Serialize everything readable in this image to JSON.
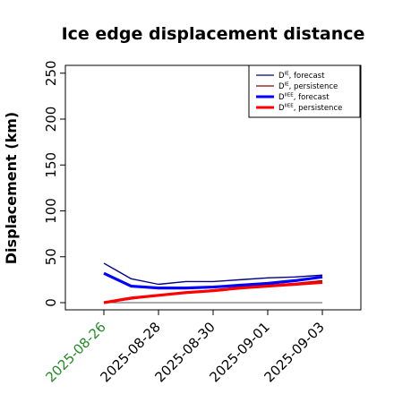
{
  "chart_data": {
    "type": "line",
    "title": "Ice edge displacement distance",
    "ylabel": "Displacement (km)",
    "xlabel": "",
    "ylim": [
      0,
      260
    ],
    "yticks": [
      0,
      50,
      100,
      150,
      200,
      250
    ],
    "x": [
      "2025-08-26",
      "2025-08-27",
      "2025-08-28",
      "2025-08-29",
      "2025-08-30",
      "2025-08-31",
      "2025-09-01",
      "2025-09-02",
      "2025-09-03"
    ],
    "xticks": [
      "2025-08-26",
      "2025-08-28",
      "2025-08-30",
      "2025-09-01",
      "2025-09-03"
    ],
    "highlight_tick": "2025-08-26",
    "highlight_color": "#228b22",
    "zero_line": true,
    "legend_position": "top-right",
    "series": [
      {
        "name": "D forecast",
        "sup": "IE",
        "color": "#00008b",
        "width": "thin",
        "values": [
          43,
          26,
          20,
          23,
          23,
          25,
          27,
          28,
          30
        ]
      },
      {
        "name": "D persistence",
        "sup": "IE",
        "color": "#8b0000",
        "width": "thin",
        "values": [
          0,
          4,
          8,
          11,
          14,
          17,
          19,
          21,
          24
        ]
      },
      {
        "name": "D forecast",
        "sup": "IIEE",
        "color": "#0000ff",
        "width": "thick",
        "values": [
          32,
          18,
          16,
          16,
          17,
          19,
          21,
          24,
          28
        ]
      },
      {
        "name": "D persistence",
        "sup": "IIEE",
        "color": "#ff0000",
        "width": "thick",
        "values": [
          0,
          5,
          8,
          11,
          13,
          16,
          18,
          20,
          22
        ]
      }
    ]
  }
}
